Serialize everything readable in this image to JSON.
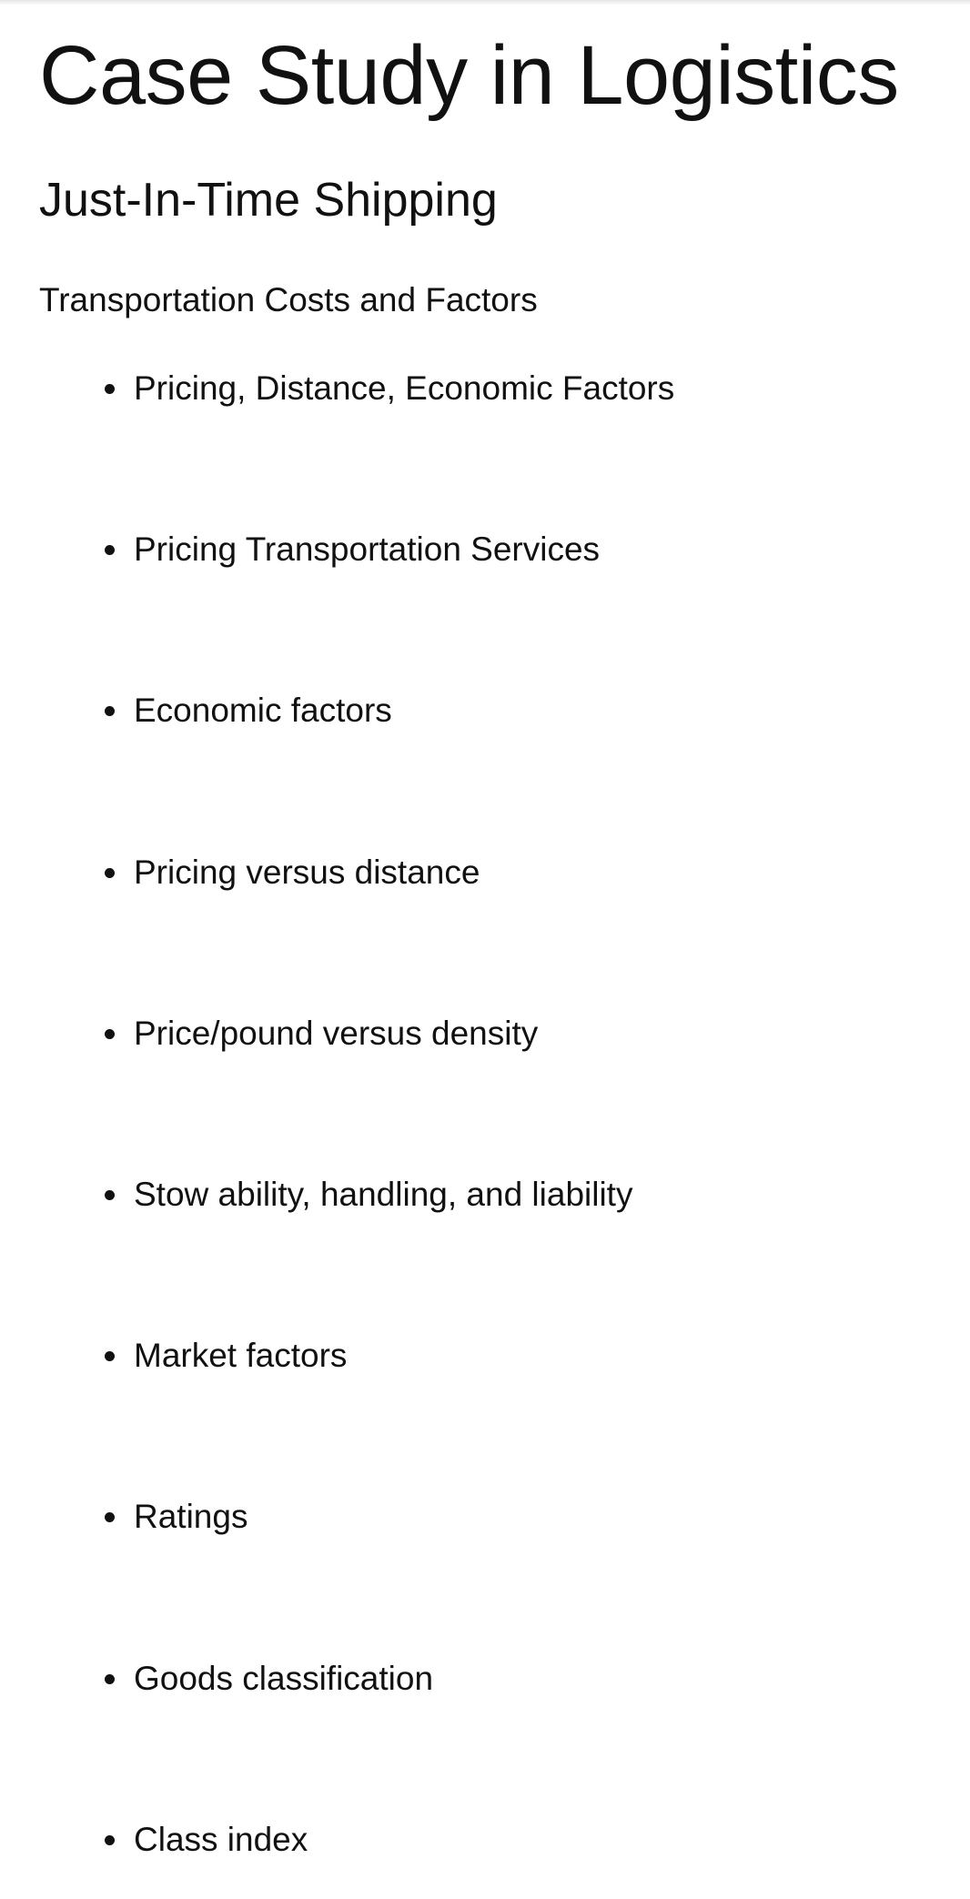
{
  "document": {
    "title": "Case Study in Logistics",
    "subtitle": "Just-In-Time Shipping",
    "section_heading": "Transportation Costs and Factors",
    "bullets": [
      "Pricing, Distance, Economic Factors",
      "Pricing Transportation Services",
      "Economic factors",
      "Pricing versus distance",
      "Price/pound versus density",
      "Stow ability, handling, and liability",
      "Market factors",
      "Ratings",
      "Goods classification",
      "Class index"
    ]
  }
}
